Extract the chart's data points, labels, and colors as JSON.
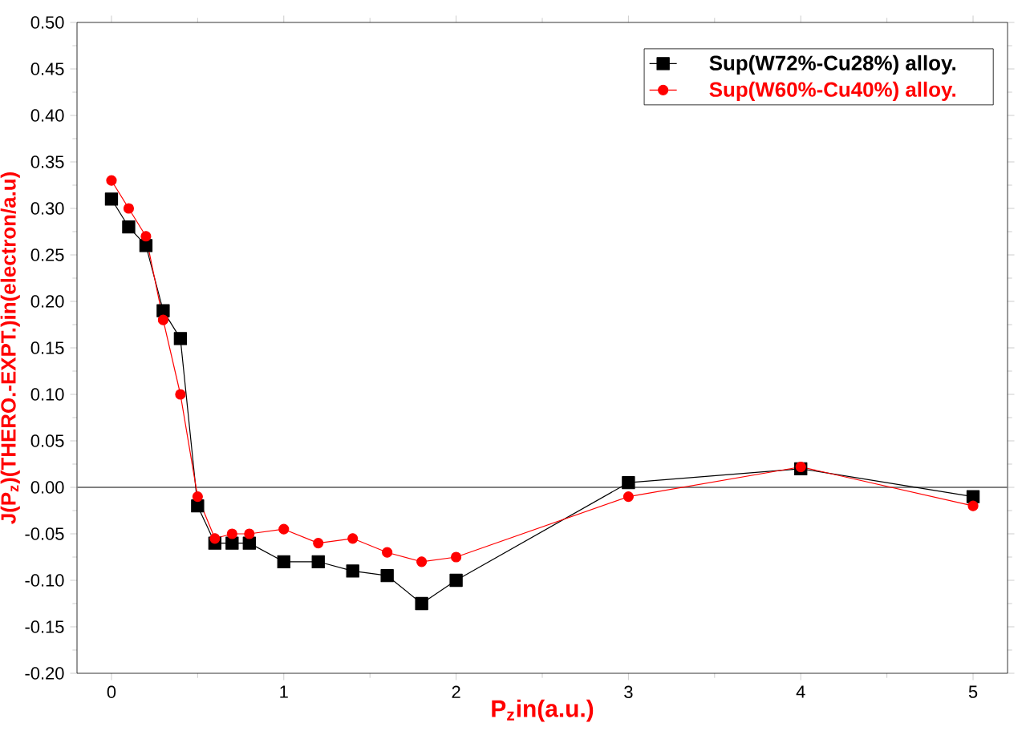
{
  "chart_data": {
    "type": "line",
    "xlabel": "P$_{z}$in(a.u.)",
    "ylabel": "J(P$_{z}$)(THERO.-EXPT.)in(electron/a.u)",
    "series": [
      {
        "name": "Sup(W72%-Cu28%) alloy.",
        "color": "#000000",
        "marker": "square",
        "x": [
          0,
          0.1,
          0.2,
          0.3,
          0.4,
          0.5,
          0.6,
          0.7,
          0.8,
          1.0,
          1.2,
          1.4,
          1.6,
          1.8,
          2,
          3,
          4,
          5
        ],
        "values": [
          0.31,
          0.28,
          0.26,
          0.19,
          0.16,
          -0.02,
          -0.06,
          -0.06,
          -0.06,
          -0.08,
          -0.08,
          -0.09,
          -0.095,
          -0.125,
          -0.1,
          0.005,
          0.02,
          -0.01
        ]
      },
      {
        "name": "Sup(W60%-Cu40%) alloy.",
        "color": "#ff0000",
        "marker": "circle",
        "x": [
          0,
          0.1,
          0.2,
          0.3,
          0.4,
          0.5,
          0.6,
          0.7,
          0.8,
          1.0,
          1.2,
          1.4,
          1.6,
          1.8,
          2,
          3,
          4,
          5
        ],
        "values": [
          0.33,
          0.3,
          0.27,
          0.18,
          0.1,
          -0.01,
          -0.055,
          -0.05,
          -0.05,
          -0.045,
          -0.06,
          -0.055,
          -0.07,
          -0.08,
          -0.075,
          -0.01,
          0.022,
          -0.02
        ]
      }
    ],
    "xlim": [
      -0.2,
      5.2
    ],
    "xticks": [
      0,
      1,
      2,
      3,
      4,
      5
    ],
    "ylim": [
      -0.2,
      0.5
    ],
    "yticks": [
      {
        "value": -0.2,
        "label": "-0.20"
      },
      {
        "value": -0.15,
        "label": "-0.15"
      },
      {
        "value": -0.1,
        "label": "-0.10"
      },
      {
        "value": -0.05,
        "label": "-0.05"
      },
      {
        "value": 0,
        "label": "0.00"
      },
      {
        "value": 0.05,
        "label": "0.05"
      },
      {
        "value": 0.1,
        "label": "0.10"
      },
      {
        "value": 0.15,
        "label": "0.15"
      },
      {
        "value": 0.2,
        "label": "0.20"
      },
      {
        "value": 0.25,
        "label": "0.25"
      },
      {
        "value": 0.3,
        "label": "0.30"
      },
      {
        "value": 0.35,
        "label": "0.35"
      },
      {
        "value": 0.4,
        "label": "0.40"
      },
      {
        "value": 0.45,
        "label": "0.45"
      },
      {
        "value": 0.5,
        "label": "0.50"
      }
    ],
    "ref_lines": [
      {
        "axis": "y",
        "value": 0,
        "color": "#808080"
      }
    ],
    "legend": "top right",
    "grid": false
  }
}
